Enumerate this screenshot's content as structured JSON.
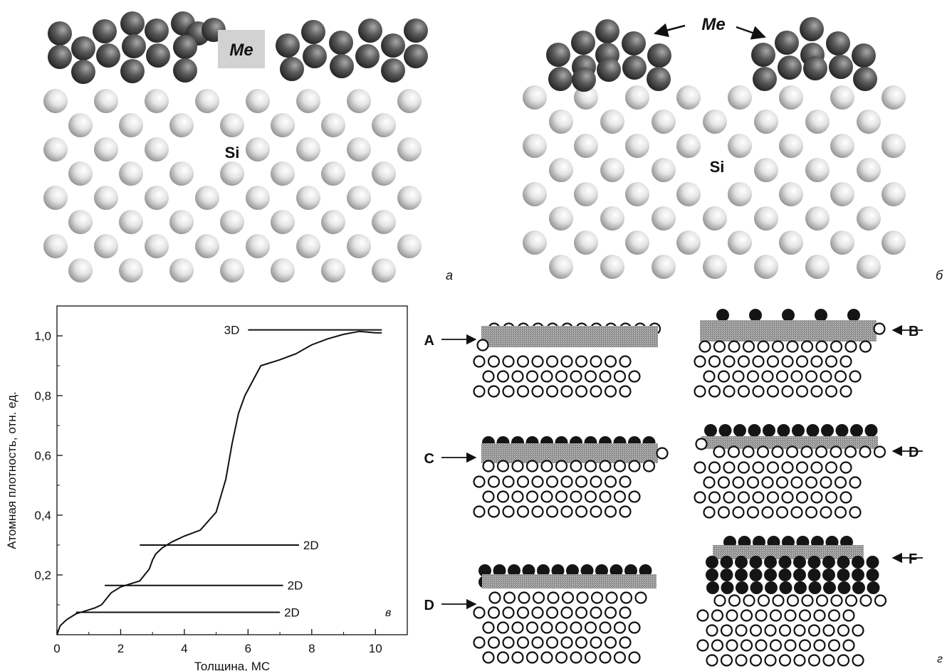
{
  "panel_a": {
    "me_label": "Me",
    "si_label": "Si",
    "panel_letter": "а"
  },
  "panel_b": {
    "me_label": "Me",
    "si_label": "Si",
    "panel_letter": "б"
  },
  "panel_c": {
    "panel_letter": "в",
    "chart_data": {
      "type": "line",
      "xlabel": "Толщина, МС",
      "ylabel": "Атомная плотность, отн. ед.",
      "xlim": [
        0,
        11
      ],
      "ylim": [
        0,
        1.1
      ],
      "x_ticks": [
        "0",
        "2",
        "4",
        "6",
        "8",
        "10"
      ],
      "y_ticks": [
        "0,2",
        "0,4",
        "0,6",
        "0,8",
        "1,0"
      ],
      "series": [
        {
          "x": [
            0,
            0.1,
            0.3,
            0.6,
            0.9,
            1.2,
            1.4,
            1.7,
            2.0,
            2.3,
            2.6,
            2.9,
            3.0,
            3.1,
            3.3,
            3.6,
            4.0,
            4.5,
            5.0,
            5.3,
            5.5,
            5.7,
            5.9,
            6.0,
            6.4,
            7.0,
            7.5,
            8.0,
            8.5,
            9.0,
            9.5,
            10.0,
            10.2
          ],
          "y": [
            0,
            0.03,
            0.05,
            0.07,
            0.08,
            0.09,
            0.1,
            0.14,
            0.16,
            0.17,
            0.18,
            0.22,
            0.25,
            0.27,
            0.29,
            0.31,
            0.33,
            0.35,
            0.41,
            0.52,
            0.64,
            0.74,
            0.8,
            0.82,
            0.9,
            0.92,
            0.94,
            0.97,
            0.99,
            1.005,
            1.015,
            1.01,
            1.01
          ]
        }
      ],
      "horizontal_lines": [
        {
          "label": "3D",
          "x0": 6.0,
          "x1": 10.2,
          "y": 1.02
        },
        {
          "label": "2D",
          "x0": 2.6,
          "x1": 7.6,
          "y": 0.3
        },
        {
          "label": "2D",
          "x0": 1.5,
          "x1": 7.1,
          "y": 0.165
        },
        {
          "label": "2D",
          "x0": 0.6,
          "x1": 7.0,
          "y": 0.075
        }
      ]
    }
  },
  "panel_d": {
    "panel_letter": "г",
    "labels": [
      "A",
      "B",
      "C",
      "D",
      "D",
      "F"
    ]
  }
}
